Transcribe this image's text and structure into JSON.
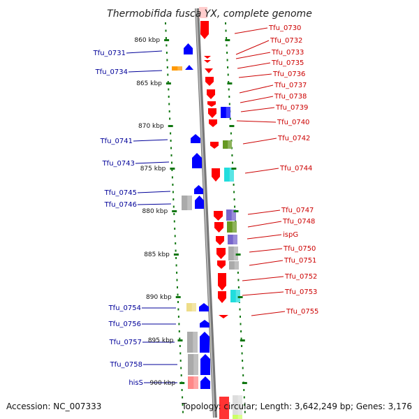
{
  "title": "Thermobifida fusca YX, complete genome",
  "accession": "Accession: NC_007333",
  "topology": "Topology: circular; Length: 3,642,249 bp; Genes: 3,176",
  "ticks": [
    "860 kbp",
    "865 kbp",
    "870 kbp",
    "875 kbp",
    "880 kbp",
    "885 kbp",
    "890 kbp",
    "895 kbp",
    "900 kbp"
  ],
  "genes_right": [
    "Tfu_0730",
    "Tfu_0732",
    "Tfu_0733",
    "Tfu_0735",
    "Tfu_0736",
    "Tfu_0737",
    "Tfu_0738",
    "Tfu_0739",
    "Tfu_0740",
    "Tfu_0742",
    "Tfu_0744",
    "Tfu_0747",
    "Tfu_0748",
    "ispG",
    "Tfu_0750",
    "Tfu_0751",
    "Tfu_0752",
    "Tfu_0753",
    "Tfu_0755"
  ],
  "genes_left": [
    "Tfu_0731",
    "Tfu_0734",
    "Tfu_0741",
    "Tfu_0743",
    "Tfu_0745",
    "Tfu_0746",
    "Tfu_0754",
    "Tfu_0756",
    "Tfu_0757",
    "Tfu_0758",
    "hisS"
  ],
  "colors": {
    "forward_gene": "#ff0000",
    "reverse_gene": "#0000ff",
    "backbone": "#999999",
    "tick": "#117711",
    "right_label": "#cc0000",
    "left_label": "#000099",
    "gray_cog": "#aaaaaa",
    "cyan_cog": "#22dddd",
    "olive_cog": "#669922",
    "purple_cog": "#7766cc",
    "orange_cog": "#ff9900",
    "yellow_cog": "#eedd88",
    "pink_cog": "#ff8888"
  }
}
